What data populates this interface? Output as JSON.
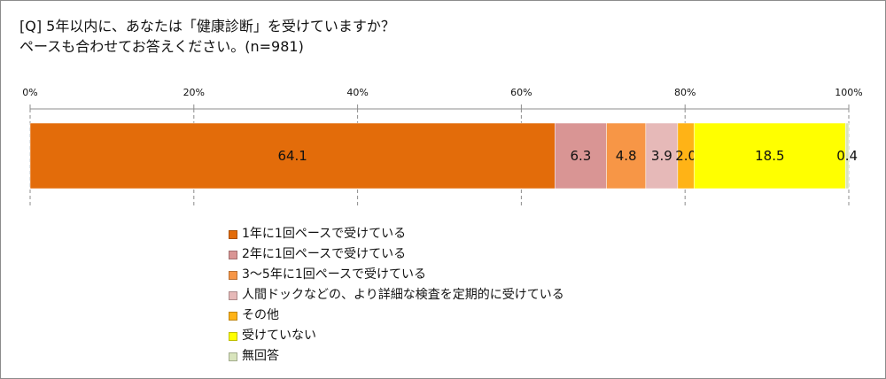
{
  "question": {
    "line1": "[Q]  5年以内に、あなたは「健康診断」を受けていますか？",
    "line2": "ペースも合わせてお答えください。(n=981)"
  },
  "chart_data": {
    "type": "bar",
    "orientation": "horizontal",
    "stacked": true,
    "percent_stacked": true,
    "xlim": [
      0,
      100
    ],
    "x_ticks": [
      "0%",
      "20%",
      "40%",
      "60%",
      "80%",
      "100%"
    ],
    "grid": true,
    "legend_position": "bottom",
    "series": [
      {
        "name": "1年に1回ペースで受けている",
        "value": 64.1,
        "label": "64.1",
        "color": "#e36c0a"
      },
      {
        "name": "2年に1回ペースで受けている",
        "value": 6.3,
        "label": "6.3",
        "color": "#d99594"
      },
      {
        "name": "3〜5年に1回ペースで受けている",
        "value": 4.8,
        "label": "4.8",
        "color": "#f79646"
      },
      {
        "name": "人間ドックなどの、より詳細な検査を定期的に受けている",
        "value": 3.9,
        "label": "3.9",
        "color": "#e6b9b8"
      },
      {
        "name": "その他",
        "value": 2.0,
        "label": "2.0",
        "color": "#ffb316"
      },
      {
        "name": "受けていない",
        "value": 18.5,
        "label": "18.5",
        "color": "#ffff00"
      },
      {
        "name": "無回答",
        "value": 0.4,
        "label": "0.4",
        "color": "#d8e4bc"
      }
    ]
  }
}
